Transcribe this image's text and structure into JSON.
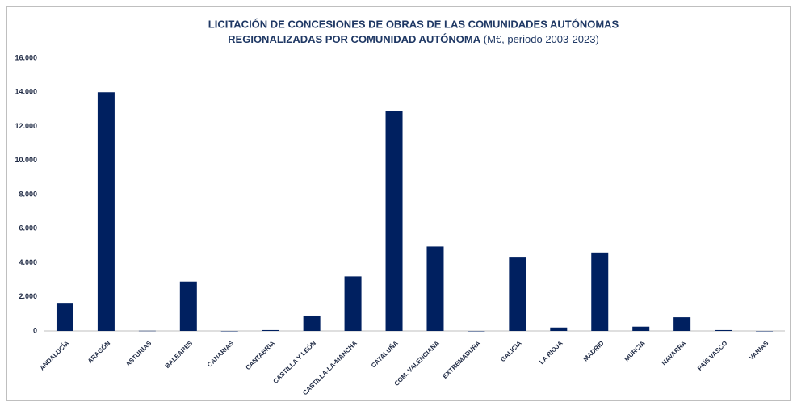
{
  "chart_data": {
    "type": "bar",
    "title": [
      "LICITACIÓN DE CONCESIONES DE OBRAS DE LAS COMUNIDADES AUTÓNOMAS",
      "REGIONALIZADAS POR COMUNIDAD AUTÓNOMA"
    ],
    "subtitle": "(M€, periodo 2003-2023)",
    "categories": [
      "ANDALUCÍA",
      "ARAGÓN",
      "ASTURIAS",
      "BALEARES",
      "CANARIAS",
      "CANTABRIA",
      "CASTILLA Y LEÓN",
      "CASTILLA-LA-MANCHA",
      "CATALUÑA",
      "COM. VALENCIANA",
      "EXTREMADURA",
      "GALICIA",
      "LA RIOJA",
      "MADRID",
      "MURCIA",
      "NAVARRA",
      "PAÍS VASCO",
      "VARIAS"
    ],
    "values": [
      1650,
      14000,
      10,
      2900,
      0,
      50,
      900,
      3200,
      12900,
      4950,
      0,
      4350,
      200,
      4600,
      250,
      800,
      50,
      0
    ],
    "color": "#002060",
    "ylim": [
      0,
      16000
    ],
    "yticks": [
      0,
      {
        "value": 2000,
        "label": "2.000"
      },
      {
        "value": 4000,
        "label": "4.000"
      },
      {
        "value": 6000,
        "label": "6.000"
      },
      {
        "value": 8000,
        "label": "8.000"
      },
      {
        "value": 10000,
        "label": "10.000"
      },
      {
        "value": 12000,
        "label": "12.000"
      },
      {
        "value": 14000,
        "label": "14.000"
      },
      {
        "value": 16000,
        "label": "16.000"
      }
    ],
    "grid": false
  }
}
